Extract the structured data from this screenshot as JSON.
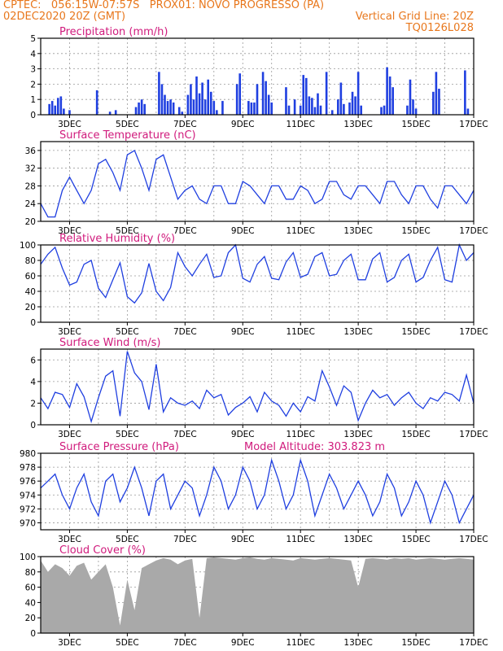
{
  "header": {
    "line1_left": "CPTEC:   056:15W-07:57S   PROX01: NOVO PROGRESSO (PA)",
    "line2_left": "02DEC2020 20Z (GMT)",
    "line2_right": "Vertical Grid Line: 20Z",
    "line3_right": "TQ0126L028"
  },
  "colors": {
    "header": "#e8771c",
    "titles": "#d01a7c",
    "series": "#1f3fe0",
    "cloud": "#a9a9a9",
    "grid": "#999999"
  },
  "x_tick_labels": [
    "3DEC",
    "5DEC",
    "7DEC",
    "9DEC",
    "11DEC",
    "13DEC",
    "15DEC",
    "17DEC"
  ],
  "chart_data": [
    {
      "type": "bar",
      "title": "Precipitation (mm/h)",
      "ylim": [
        0,
        5
      ],
      "yticks": [
        0,
        1,
        2,
        3,
        4,
        5
      ],
      "x": [
        2.3,
        2.4,
        2.5,
        2.6,
        2.7,
        2.8,
        3.0,
        3.95,
        4.4,
        4.6,
        5.3,
        5.4,
        5.5,
        5.6,
        6.1,
        6.2,
        6.3,
        6.4,
        6.5,
        6.6,
        6.8,
        6.9,
        7.1,
        7.2,
        7.3,
        7.4,
        7.5,
        7.6,
        7.7,
        7.8,
        7.9,
        8.0,
        8.1,
        8.3,
        8.8,
        8.9,
        9.2,
        9.3,
        9.4,
        9.5,
        9.7,
        9.8,
        9.9,
        10.0,
        10.5,
        10.6,
        10.8,
        11.0,
        11.1,
        11.2,
        11.3,
        11.4,
        11.5,
        11.6,
        11.7,
        11.9,
        12.1,
        12.3,
        12.4,
        12.5,
        12.7,
        12.8,
        12.9,
        13.0,
        13.1,
        13.8,
        13.9,
        14.0,
        14.1,
        14.2,
        14.7,
        14.8,
        14.9,
        15.0,
        15.6,
        15.7,
        15.8,
        16.7,
        16.8
      ],
      "values": [
        0.7,
        0.9,
        0.6,
        1.1,
        1.2,
        0.4,
        0.3,
        1.6,
        0.2,
        0.3,
        0.5,
        0.8,
        1.0,
        0.7,
        2.8,
        2.0,
        1.3,
        0.9,
        1.0,
        0.8,
        0.5,
        0.2,
        1.3,
        2.0,
        1.0,
        2.5,
        1.4,
        2.1,
        1.0,
        2.3,
        1.5,
        0.9,
        0.3,
        0.9,
        2.0,
        2.7,
        0.9,
        0.8,
        0.8,
        2.0,
        2.8,
        2.2,
        1.3,
        0.8,
        1.8,
        0.6,
        1.0,
        0.6,
        2.6,
        2.4,
        1.2,
        1.1,
        0.5,
        1.4,
        0.6,
        2.8,
        0.3,
        1.0,
        2.1,
        0.7,
        0.8,
        1.5,
        1.2,
        2.8,
        0.6,
        0.5,
        0.6,
        3.1,
        2.5,
        1.8,
        0.6,
        2.3,
        1.0,
        0.4,
        1.5,
        2.8,
        1.7,
        2.9,
        0.4
      ],
      "xlim": [
        2.0,
        17.0
      ]
    },
    {
      "type": "line",
      "title": "Surface Temperature (nC)",
      "ylim": [
        20,
        38
      ],
      "yticks": [
        20,
        24,
        28,
        32,
        36
      ],
      "xlim": [
        2.0,
        17.0
      ],
      "x": [
        2.0,
        2.25,
        2.5,
        2.75,
        3.0,
        3.25,
        3.5,
        3.75,
        4.0,
        4.25,
        4.5,
        4.75,
        5.0,
        5.25,
        5.5,
        5.75,
        6.0,
        6.25,
        6.5,
        6.75,
        7.0,
        7.25,
        7.5,
        7.75,
        8.0,
        8.25,
        8.5,
        8.75,
        9.0,
        9.25,
        9.5,
        9.75,
        10.0,
        10.25,
        10.5,
        10.75,
        11.0,
        11.25,
        11.5,
        11.75,
        12.0,
        12.25,
        12.5,
        12.75,
        13.0,
        13.25,
        13.5,
        13.75,
        14.0,
        14.25,
        14.5,
        14.75,
        15.0,
        15.25,
        15.5,
        15.75,
        16.0,
        16.25,
        16.5,
        16.75,
        17.0
      ],
      "values": [
        24,
        21,
        21,
        27,
        30,
        27,
        24,
        27,
        33,
        34,
        31,
        27,
        35,
        36,
        32,
        27,
        34,
        35,
        30,
        25,
        27,
        28,
        25,
        24,
        28,
        28,
        24,
        24,
        29,
        28,
        26,
        24,
        28,
        28,
        25,
        25,
        28,
        27,
        24,
        25,
        29,
        29,
        26,
        25,
        28,
        28,
        26,
        24,
        29,
        29,
        26,
        24,
        28,
        28,
        25,
        23,
        28,
        28,
        26,
        24,
        27
      ]
    },
    {
      "type": "line",
      "title": "Relative Humidity (%)",
      "ylim": [
        0,
        100
      ],
      "yticks": [
        0,
        20,
        40,
        60,
        80,
        100
      ],
      "xlim": [
        2.0,
        17.0
      ],
      "x": [
        2.0,
        2.25,
        2.5,
        2.75,
        3.0,
        3.25,
        3.5,
        3.75,
        4.0,
        4.25,
        4.5,
        4.75,
        5.0,
        5.25,
        5.5,
        5.75,
        6.0,
        6.25,
        6.5,
        6.75,
        7.0,
        7.25,
        7.5,
        7.75,
        8.0,
        8.25,
        8.5,
        8.75,
        9.0,
        9.25,
        9.5,
        9.75,
        10.0,
        10.25,
        10.5,
        10.75,
        11.0,
        11.25,
        11.5,
        11.75,
        12.0,
        12.25,
        12.5,
        12.75,
        13.0,
        13.25,
        13.5,
        13.75,
        14.0,
        14.25,
        14.5,
        14.75,
        15.0,
        15.25,
        15.5,
        15.75,
        16.0,
        16.25,
        16.5,
        16.75,
        17.0
      ],
      "values": [
        75,
        88,
        97,
        70,
        48,
        52,
        75,
        80,
        44,
        32,
        55,
        77,
        33,
        25,
        38,
        76,
        40,
        28,
        45,
        90,
        72,
        60,
        75,
        88,
        58,
        60,
        90,
        100,
        57,
        52,
        75,
        85,
        57,
        55,
        78,
        90,
        58,
        62,
        85,
        90,
        60,
        62,
        80,
        88,
        55,
        55,
        82,
        90,
        52,
        58,
        80,
        88,
        52,
        58,
        80,
        97,
        55,
        52,
        100,
        80,
        90
      ]
    },
    {
      "type": "line",
      "title": "Surface Wind (m/s)",
      "ylim": [
        0,
        7
      ],
      "yticks": [
        0,
        2,
        4,
        6
      ],
      "xlim": [
        2.0,
        17.0
      ],
      "x": [
        2.0,
        2.25,
        2.5,
        2.75,
        3.0,
        3.25,
        3.5,
        3.75,
        4.0,
        4.25,
        4.5,
        4.75,
        5.0,
        5.25,
        5.5,
        5.75,
        6.0,
        6.25,
        6.5,
        6.75,
        7.0,
        7.25,
        7.5,
        7.75,
        8.0,
        8.25,
        8.5,
        8.75,
        9.0,
        9.25,
        9.5,
        9.75,
        10.0,
        10.25,
        10.5,
        10.75,
        11.0,
        11.25,
        11.5,
        11.75,
        12.0,
        12.25,
        12.5,
        12.75,
        13.0,
        13.25,
        13.5,
        13.75,
        14.0,
        14.25,
        14.5,
        14.75,
        15.0,
        15.25,
        15.5,
        15.75,
        16.0,
        16.25,
        16.5,
        16.75,
        17.0
      ],
      "values": [
        2.5,
        1.5,
        3.0,
        2.8,
        1.6,
        3.8,
        2.6,
        0.3,
        2.5,
        4.5,
        5.0,
        0.8,
        6.8,
        4.8,
        4.0,
        1.4,
        5.6,
        1.2,
        2.5,
        2.0,
        1.8,
        2.2,
        1.5,
        3.2,
        2.5,
        2.8,
        0.9,
        1.6,
        2.0,
        2.6,
        1.2,
        3.0,
        2.2,
        1.8,
        0.8,
        2.0,
        1.2,
        2.6,
        2.2,
        5.0,
        3.5,
        1.8,
        3.6,
        3.0,
        0.4,
        2.0,
        3.2,
        2.5,
        2.8,
        1.8,
        2.5,
        3.0,
        2.0,
        1.5,
        2.5,
        2.2,
        3.0,
        2.8,
        2.2,
        4.6,
        2.0
      ]
    },
    {
      "type": "line",
      "title": "Surface Pressure (hPa)",
      "subtitle": "Model Altitude: 303.823 m",
      "ylim": [
        969,
        980
      ],
      "yticks": [
        970,
        972,
        974,
        976,
        978,
        980
      ],
      "xlim": [
        2.0,
        17.0
      ],
      "x": [
        2.0,
        2.25,
        2.5,
        2.75,
        3.0,
        3.25,
        3.5,
        3.75,
        4.0,
        4.25,
        4.5,
        4.75,
        5.0,
        5.25,
        5.5,
        5.75,
        6.0,
        6.25,
        6.5,
        6.75,
        7.0,
        7.25,
        7.5,
        7.75,
        8.0,
        8.25,
        8.5,
        8.75,
        9.0,
        9.25,
        9.5,
        9.75,
        10.0,
        10.25,
        10.5,
        10.75,
        11.0,
        11.25,
        11.5,
        11.75,
        12.0,
        12.25,
        12.5,
        12.75,
        13.0,
        13.25,
        13.5,
        13.75,
        14.0,
        14.25,
        14.5,
        14.75,
        15.0,
        15.25,
        15.5,
        15.75,
        16.0,
        16.25,
        16.5,
        16.75,
        17.0
      ],
      "values": [
        975,
        976,
        977,
        974,
        972,
        975,
        977,
        973,
        971,
        976,
        977,
        973,
        975,
        978,
        975,
        971,
        976,
        977,
        972,
        974,
        976,
        975,
        971,
        974,
        978,
        976,
        972,
        974,
        978,
        976,
        972,
        974,
        979,
        976,
        972,
        974,
        979,
        976,
        971,
        974,
        977,
        975,
        972,
        974,
        976,
        974,
        971,
        973,
        977,
        975,
        971,
        973,
        976,
        974,
        970,
        973,
        976,
        974,
        970,
        972,
        974
      ]
    },
    {
      "type": "area",
      "title": "Cloud Cover (%)",
      "ylim": [
        0,
        100
      ],
      "yticks": [
        0,
        20,
        40,
        60,
        80,
        100
      ],
      "xlim": [
        2.0,
        17.0
      ],
      "x": [
        2.0,
        2.25,
        2.5,
        2.75,
        3.0,
        3.25,
        3.5,
        3.75,
        4.0,
        4.25,
        4.5,
        4.75,
        5.0,
        5.25,
        5.5,
        5.75,
        6.0,
        6.25,
        6.5,
        6.75,
        7.0,
        7.25,
        7.5,
        7.75,
        8.0,
        8.25,
        8.5,
        8.75,
        9.0,
        9.25,
        9.5,
        9.75,
        10.0,
        10.25,
        10.5,
        10.75,
        11.0,
        11.25,
        11.5,
        11.75,
        12.0,
        12.25,
        12.5,
        12.75,
        13.0,
        13.25,
        13.5,
        13.75,
        14.0,
        14.25,
        14.5,
        14.75,
        15.0,
        15.25,
        15.5,
        15.75,
        16.0,
        16.25,
        16.5,
        16.75,
        17.0
      ],
      "values": [
        95,
        80,
        90,
        85,
        75,
        88,
        92,
        70,
        80,
        90,
        60,
        10,
        70,
        30,
        85,
        90,
        95,
        98,
        96,
        90,
        95,
        97,
        20,
        98,
        99,
        98,
        97,
        96,
        98,
        99,
        97,
        96,
        98,
        97,
        96,
        95,
        98,
        97,
        96,
        97,
        98,
        97,
        96,
        95,
        60,
        97,
        98,
        97,
        96,
        98,
        97,
        98,
        96,
        97,
        98,
        97,
        96,
        97,
        98,
        97,
        96
      ]
    }
  ]
}
